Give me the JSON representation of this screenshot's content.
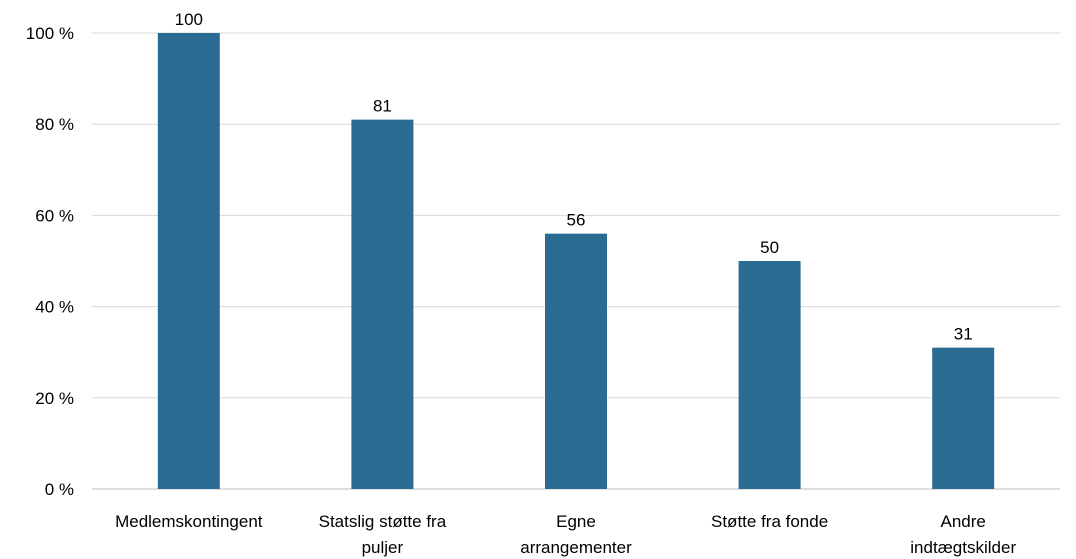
{
  "chart_data": {
    "type": "bar",
    "categories": [
      [
        "Medlemskontingent"
      ],
      [
        "Statslig støtte fra",
        "puljer"
      ],
      [
        "Egne",
        "arrangementer"
      ],
      [
        "Støtte fra fonde"
      ],
      [
        "Andre",
        "indtægtskilder"
      ]
    ],
    "values": [
      100,
      81,
      56,
      50,
      31
    ],
    "data_labels": [
      "100",
      "81",
      "56",
      "50",
      "31"
    ],
    "yticks": [
      0,
      20,
      40,
      60,
      80,
      100
    ],
    "ytick_labels": [
      "0 %",
      "20 %",
      "40 %",
      "60 %",
      "80 %",
      "100 %"
    ],
    "ylim": [
      0,
      100
    ],
    "grid": true,
    "bar_color": "#2a6b94",
    "grid_color": "#d9d9d9"
  }
}
